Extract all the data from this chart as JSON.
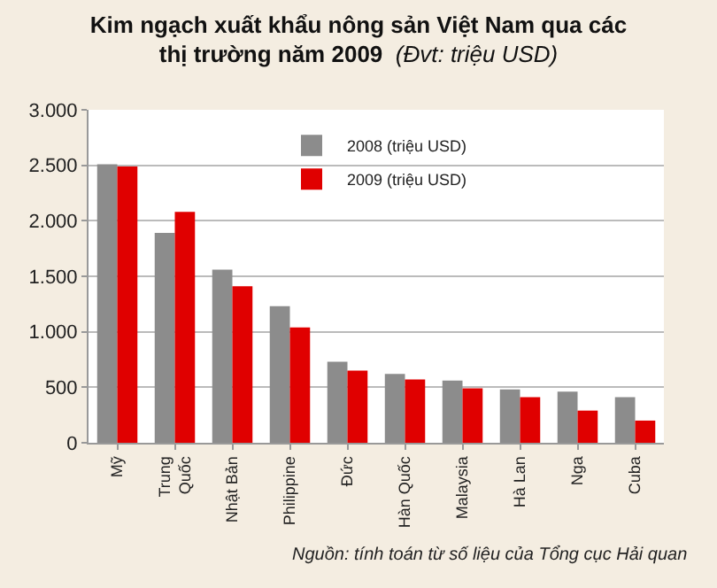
{
  "chart_data": {
    "type": "bar",
    "title": "Kim ngạch xuất khẩu nông sản Việt Nam qua các thị trường năm 2009",
    "subtitle": "(Đvt: triệu USD)",
    "categories": [
      "Mỹ",
      "Trung Quốc",
      "Nhật Bản",
      "Philippine",
      "Đức",
      "Hàn Quốc",
      "Malaysia",
      "Hà Lan",
      "Nga",
      "Cuba"
    ],
    "series": [
      {
        "name": "2008 (triệu USD)",
        "color": "#8c8c8c",
        "values": [
          2510,
          1890,
          1560,
          1230,
          730,
          620,
          560,
          480,
          460,
          410
        ]
      },
      {
        "name": "2009 (triệu USD)",
        "color": "#e00000",
        "values": [
          2490,
          2080,
          1410,
          1040,
          650,
          570,
          490,
          410,
          290,
          200
        ]
      }
    ],
    "ylim": [
      0,
      3000
    ],
    "yticks": [
      0,
      500,
      {
        "value": 1000,
        "label": "1.000"
      },
      {
        "value": 1500,
        "label": "1.500"
      },
      {
        "value": 2000,
        "label": "2.000"
      },
      {
        "value": 2500,
        "label": "2.500"
      },
      {
        "value": 3000,
        "label": "3.000"
      }
    ],
    "grid": "y",
    "legend": "top",
    "annotations": [
      "Nguồn: tính toán từ số liệu của Tổng cục Hải quan"
    ]
  }
}
